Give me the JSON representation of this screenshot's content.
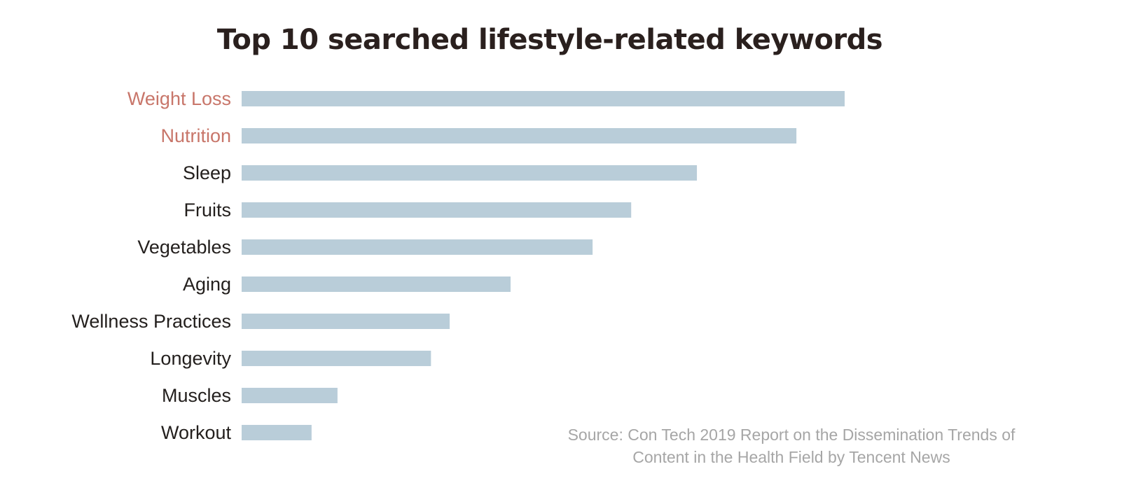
{
  "chart_data": {
    "type": "bar",
    "orientation": "horizontal",
    "title": "Top 10 searched lifestyle-related keywords",
    "categories": [
      "Weight Loss",
      "Nutrition",
      "Sleep",
      "Fruits",
      "Vegetables",
      "Aging",
      "Wellness Practices",
      "Longevity",
      "Muscles",
      "Workout"
    ],
    "values": [
      100,
      92,
      75.5,
      64.6,
      58.2,
      44.6,
      34.5,
      31.4,
      15.9,
      11.6
    ],
    "xlim": [
      0,
      100
    ],
    "grid": false,
    "highlighted_categories": [
      "Weight Loss",
      "Nutrition"
    ],
    "colors": {
      "bar": "#b9cdd9",
      "label": "#231f1d",
      "highlight_label": "#c8766a",
      "title": "#2a201e",
      "source": "#a6a6a6"
    },
    "source_lines": [
      "Source: Con Tech 2019 Report on the Dissemination Trends of",
      "Content in the Health Field by Tencent News"
    ]
  }
}
